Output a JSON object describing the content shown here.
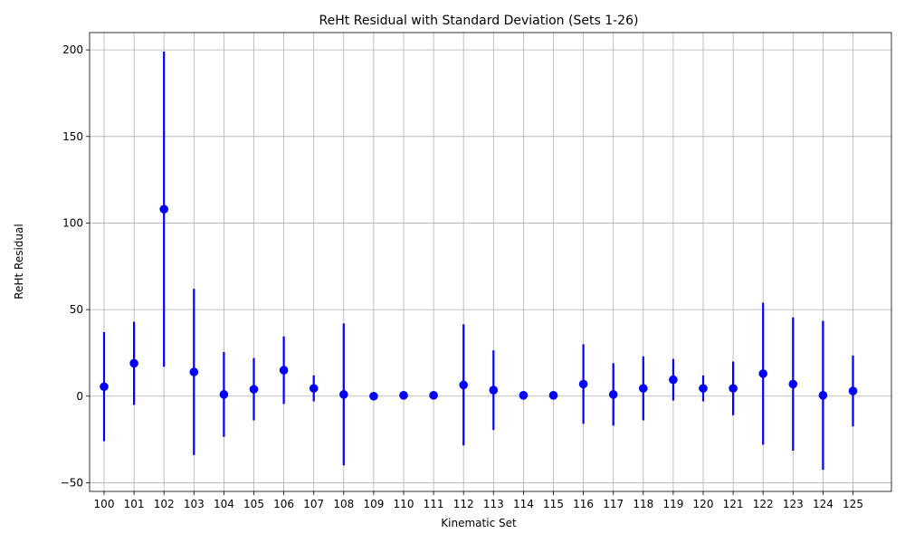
{
  "chart_data": {
    "type": "scatter",
    "title": "ReHt Residual with Standard Deviation (Sets 1-26)",
    "xlabel": "Kinematic Set",
    "ylabel": "ReHt Residual",
    "ylim": [
      -55,
      210
    ],
    "yticks": [
      -50,
      0,
      50,
      100,
      150,
      200
    ],
    "grid": true,
    "color": "#0000ff",
    "categories": [
      "100",
      "101",
      "102",
      "103",
      "104",
      "105",
      "106",
      "107",
      "108",
      "109",
      "110",
      "111",
      "112",
      "113",
      "114",
      "115",
      "116",
      "117",
      "118",
      "119",
      "120",
      "121",
      "122",
      "123",
      "124",
      "125"
    ],
    "values": [
      5.5,
      19,
      108,
      14,
      1,
      4,
      15,
      4.5,
      1,
      0,
      0.5,
      0.5,
      6.5,
      3.5,
      0.5,
      0.5,
      7,
      1,
      4.5,
      9.5,
      4.5,
      4.5,
      13,
      7,
      0.5,
      3
    ],
    "errors": [
      31.5,
      24,
      91,
      48,
      24.5,
      18,
      19.5,
      7.5,
      41,
      0.5,
      0.5,
      0.5,
      35,
      23,
      0.5,
      0.5,
      23,
      18,
      18.5,
      12,
      7.5,
      15.5,
      41,
      38.5,
      43,
      20.5
    ]
  }
}
